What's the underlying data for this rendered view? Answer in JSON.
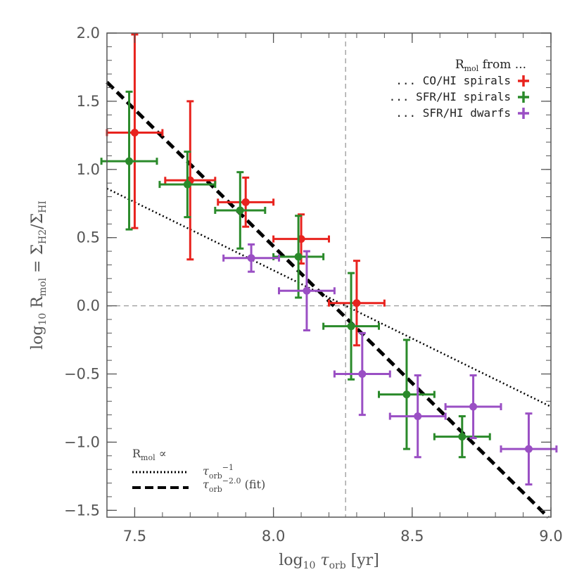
{
  "chart_data": {
    "type": "scatter",
    "xlim": [
      7.4,
      9.0
    ],
    "ylim": [
      -1.55,
      2.0
    ],
    "xticks": [
      7.5,
      8.0,
      8.5,
      9.0
    ],
    "xtick_labels": [
      "7.5",
      "8.0",
      "8.5",
      "9.0"
    ],
    "yticks": [
      -1.5,
      -1.0,
      -0.5,
      0.0,
      0.5,
      1.0,
      1.5,
      2.0
    ],
    "ytick_labels": [
      "−1.5",
      "−1.0",
      "−0.5",
      "0.0",
      "0.5",
      "1.0",
      "1.5",
      "2.0"
    ],
    "xlabel": {
      "pre": "log",
      "pre_sub": "10",
      "sym": " τ",
      "sym_sub": "orb",
      "post": " [yr]"
    },
    "ylabel": {
      "pre": "log",
      "pre_sub": "10",
      "r": " R",
      "r_sub": "mol",
      "mid": " = Σ",
      "mid_sub": "H2",
      "slash": "/Σ",
      "slash_sub": "HI"
    },
    "reference_lines": {
      "vertical_x": 8.26,
      "horizontal_y": 0.0,
      "style": "dashed",
      "color": "#999999"
    },
    "series": [
      {
        "name": "... CO/HI spirals",
        "color": "#e8231e",
        "points": [
          {
            "x": 7.5,
            "y": 1.27,
            "xerr": 0.1,
            "yerr_lo": 0.7,
            "yerr_hi": 0.72
          },
          {
            "x": 7.7,
            "y": 0.92,
            "xerr": 0.09,
            "yerr_lo": 0.58,
            "yerr_hi": 0.58
          },
          {
            "x": 7.9,
            "y": 0.76,
            "xerr": 0.1,
            "yerr_lo": 0.18,
            "yerr_hi": 0.18
          },
          {
            "x": 8.1,
            "y": 0.49,
            "xerr": 0.1,
            "yerr_lo": 0.18,
            "yerr_hi": 0.18
          },
          {
            "x": 8.3,
            "y": 0.02,
            "xerr": 0.1,
            "yerr_lo": 0.31,
            "yerr_hi": 0.31
          }
        ]
      },
      {
        "name": "... SFR/HI spirals",
        "color": "#2a8a2a",
        "points": [
          {
            "x": 7.48,
            "y": 1.06,
            "xerr": 0.1,
            "yerr_lo": 0.5,
            "yerr_hi": 0.51
          },
          {
            "x": 7.69,
            "y": 0.89,
            "xerr": 0.1,
            "yerr_lo": 0.24,
            "yerr_hi": 0.24
          },
          {
            "x": 7.88,
            "y": 0.7,
            "xerr": 0.09,
            "yerr_lo": 0.28,
            "yerr_hi": 0.28
          },
          {
            "x": 8.09,
            "y": 0.36,
            "xerr": 0.09,
            "yerr_lo": 0.3,
            "yerr_hi": 0.3
          },
          {
            "x": 8.28,
            "y": -0.15,
            "xerr": 0.1,
            "yerr_lo": 0.39,
            "yerr_hi": 0.39
          },
          {
            "x": 8.48,
            "y": -0.65,
            "xerr": 0.1,
            "yerr_lo": 0.4,
            "yerr_hi": 0.4
          },
          {
            "x": 8.68,
            "y": -0.96,
            "xerr": 0.1,
            "yerr_lo": 0.15,
            "yerr_hi": 0.15
          }
        ]
      },
      {
        "name": "... SFR/HI dwarfs",
        "color": "#9a4fc4",
        "points": [
          {
            "x": 7.92,
            "y": 0.35,
            "xerr": 0.1,
            "yerr_lo": 0.1,
            "yerr_hi": 0.1
          },
          {
            "x": 8.12,
            "y": 0.11,
            "xerr": 0.1,
            "yerr_lo": 0.29,
            "yerr_hi": 0.29
          },
          {
            "x": 8.32,
            "y": -0.5,
            "xerr": 0.1,
            "yerr_lo": 0.3,
            "yerr_hi": 0.3
          },
          {
            "x": 8.52,
            "y": -0.81,
            "xerr": 0.1,
            "yerr_lo": 0.3,
            "yerr_hi": 0.3
          },
          {
            "x": 8.72,
            "y": -0.74,
            "xerr": 0.1,
            "yerr_lo": 0.23,
            "yerr_hi": 0.23
          },
          {
            "x": 8.92,
            "y": -1.05,
            "xerr": 0.1,
            "yerr_lo": 0.26,
            "yerr_hi": 0.26
          }
        ]
      }
    ],
    "fit_lines": [
      {
        "name": "power -1",
        "style": "dotted",
        "x": [
          7.4,
          9.0
        ],
        "y": [
          0.86,
          -0.74
        ]
      },
      {
        "name": "power -2.0 (fit)",
        "style": "dashed",
        "x": [
          7.4,
          8.99
        ],
        "y": [
          1.64,
          -1.55
        ]
      }
    ],
    "legend": {
      "placement": "top-right",
      "title_main": "R",
      "title_sub": "mol",
      "title_rest": " from ...",
      "entries": [
        "... CO/HI spirals",
        "... SFR/HI spirals",
        "... SFR/HI dwarfs"
      ]
    },
    "fit_legend": {
      "placement": "bottom-left",
      "title_main": "R",
      "title_sub": "mol",
      "title_rest": " ∝",
      "line1_sym": "τ",
      "line1_sub": "orb",
      "line1_sup": "−1",
      "line2_sym": "τ",
      "line2_sub": "orb",
      "line2_sup": "−2.0",
      "line2_rest": " (fit)"
    }
  }
}
